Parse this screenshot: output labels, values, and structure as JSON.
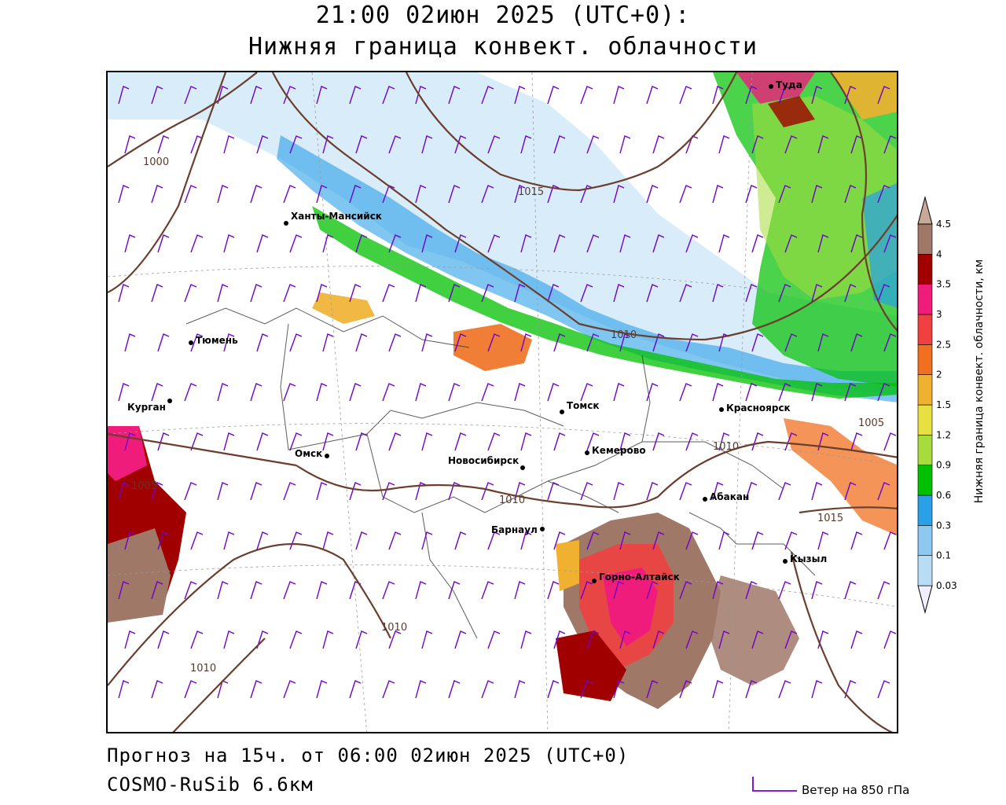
{
  "header": {
    "datetime": "21:00 02июн 2025 (UTC+0):",
    "parameter": "Нижняя граница конвект. облачности"
  },
  "footer": {
    "forecast": "Прогноз на 15ч. от 06:00 02июн 2025 (UTC+0)",
    "model": "COSMO-RuSib 6.6км"
  },
  "legend": {
    "wind_label": "Ветер на 850 гПа",
    "wind_color": "#7000cc",
    "colorbar_title": "Нижняя граница конвект. облачности, км",
    "levels": [
      "0.03",
      "0.1",
      "0.3",
      "0.6",
      "0.9",
      "1.2",
      "1.5",
      "2",
      "2.5",
      "3",
      "3.5",
      "4",
      "4.5"
    ],
    "colors": [
      "#f0eeff",
      "#b8dcf4",
      "#8cc8f0",
      "#2aa0e8",
      "#00c000",
      "#a8dc3c",
      "#e8e040",
      "#f0b030",
      "#f07020",
      "#f04040",
      "#f01c7c",
      "#a00000",
      "#a07868",
      "#c8a898"
    ]
  },
  "map": {
    "cities": [
      "Туда",
      "Ханты-Мансийск",
      "Тюмень",
      "Курган",
      "Омск",
      "Новосибирск",
      "Томск",
      "Кемерово",
      "Красноярск",
      "Абакан",
      "Барнаул",
      "Горно-Алтайск",
      "Кызыл"
    ],
    "isobar_labels": [
      "1000",
      "1015",
      "1010",
      "1005",
      "1010",
      "1010",
      "1015",
      "1010",
      "1010",
      "1005"
    ],
    "isobar_color": "#6b3e2e"
  }
}
